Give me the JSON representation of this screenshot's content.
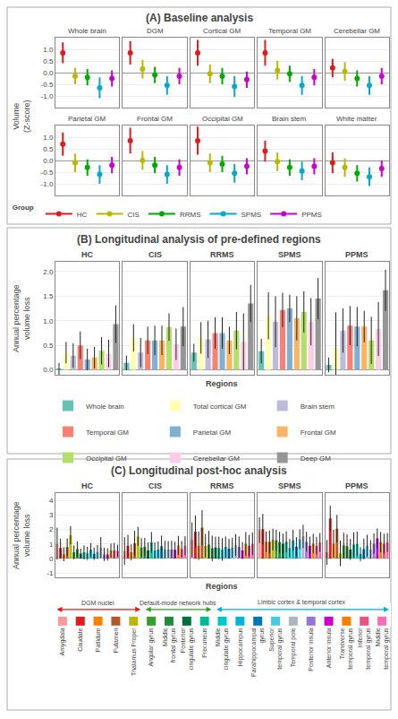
{
  "chart_data": [
    {
      "type": "point_range",
      "title": "(A) Baseline analysis",
      "y_label": "Volume\n(Z-score)",
      "categories": [
        "Whole brain",
        "DGM",
        "Cortical GM",
        "Temporal GM",
        "Cerebellar GM",
        "Parietal GM",
        "Frontal GM",
        "Occipital GM",
        "Brain stem",
        "White matter"
      ],
      "series": [
        {
          "name": "HC",
          "color": "#e31a1c",
          "values": [
            0.85,
            0.85,
            0.85,
            0.85,
            0.2,
            0.7,
            0.85,
            0.85,
            0.4,
            -0.1
          ],
          "lower": [
            0.4,
            0.35,
            0.3,
            0.3,
            -0.2,
            0.2,
            0.3,
            0.25,
            -0.05,
            -0.55
          ],
          "upper": [
            1.3,
            1.35,
            1.4,
            1.4,
            0.6,
            1.2,
            1.4,
            1.45,
            0.85,
            0.35
          ]
        },
        {
          "name": "CIS",
          "color": "#b8b800",
          "values": [
            -0.15,
            0.15,
            -0.05,
            0.1,
            0.05,
            -0.1,
            0.0,
            -0.1,
            -0.05,
            -0.3
          ],
          "lower": [
            -0.5,
            -0.25,
            -0.45,
            -0.3,
            -0.35,
            -0.5,
            -0.4,
            -0.5,
            -0.45,
            -0.7
          ],
          "upper": [
            0.2,
            0.55,
            0.35,
            0.5,
            0.45,
            0.3,
            0.4,
            0.3,
            0.35,
            0.1
          ]
        },
        {
          "name": "RRMS",
          "color": "#00aa00",
          "values": [
            -0.2,
            -0.1,
            -0.15,
            -0.05,
            -0.25,
            -0.3,
            -0.2,
            -0.15,
            -0.3,
            -0.55
          ],
          "lower": [
            -0.55,
            -0.45,
            -0.5,
            -0.4,
            -0.6,
            -0.65,
            -0.55,
            -0.5,
            -0.65,
            -0.9
          ],
          "upper": [
            0.15,
            0.25,
            0.2,
            0.3,
            0.1,
            0.05,
            0.15,
            0.2,
            0.05,
            -0.2
          ]
        },
        {
          "name": "SPMS",
          "color": "#00aacc",
          "values": [
            -0.65,
            -0.55,
            -0.6,
            -0.55,
            -0.55,
            -0.6,
            -0.6,
            -0.55,
            -0.45,
            -0.7
          ],
          "lower": [
            -1.1,
            -0.95,
            -1.05,
            -0.95,
            -0.95,
            -1.0,
            -1.0,
            -0.95,
            -0.85,
            -1.1
          ],
          "upper": [
            -0.2,
            -0.15,
            -0.15,
            -0.15,
            -0.15,
            -0.2,
            -0.2,
            -0.15,
            -0.05,
            -0.3
          ]
        },
        {
          "name": "PPMS",
          "color": "#cc00cc",
          "values": [
            -0.25,
            -0.15,
            -0.3,
            -0.2,
            -0.15,
            -0.2,
            -0.3,
            -0.25,
            -0.25,
            -0.35
          ],
          "lower": [
            -0.6,
            -0.5,
            -0.65,
            -0.55,
            -0.5,
            -0.55,
            -0.65,
            -0.6,
            -0.6,
            -0.7
          ],
          "upper": [
            0.1,
            0.2,
            0.05,
            0.15,
            0.2,
            0.15,
            0.05,
            0.1,
            0.1,
            0.0
          ]
        }
      ],
      "ylim": [
        -1.5,
        1.5
      ],
      "yticks": [
        {
          "value": -1.0,
          "label": "-1.0"
        },
        -0.5,
        {
          "value": 0.0,
          "label": "0.0"
        },
        0.5,
        {
          "value": 1.0,
          "label": "1.0"
        }
      ],
      "grid": true,
      "legend": "bottom",
      "legend_title": "Group"
    },
    {
      "type": "bar",
      "title": "(B) Longitudinal analysis of pre-defined regions",
      "y_label": "Annual percentage\nvolume loss",
      "x_label": "Regions",
      "categories": [
        "Whole brain",
        "Total cortical GM",
        "Brain stem",
        "Temporal GM",
        "Parietal GM",
        "Frontal GM",
        "Occipital GM",
        "Cerebellar GM",
        "Deep GM"
      ],
      "colors": [
        "#66c2b5",
        "#ffffb3",
        "#bebada",
        "#fb8072",
        "#80b1d3",
        "#fdb462",
        "#b3de69",
        "#fccde5",
        "#969696"
      ],
      "panels": [
        {
          "title": "HC",
          "values": [
            0.02,
            0.35,
            0.29,
            0.5,
            0.21,
            0.25,
            0.39,
            0.33,
            0.93
          ],
          "errors": [
            0.12,
            0.22,
            0.25,
            0.28,
            0.22,
            0.22,
            0.28,
            0.28,
            0.38
          ]
        },
        {
          "title": "CIS",
          "values": [
            0.14,
            0.65,
            0.35,
            0.6,
            0.6,
            0.6,
            0.87,
            0.52,
            0.88
          ],
          "errors": [
            0.15,
            0.28,
            0.3,
            0.28,
            0.3,
            0.3,
            0.28,
            0.32,
            0.4
          ]
        },
        {
          "title": "RRMS",
          "values": [
            0.35,
            0.65,
            0.62,
            0.75,
            0.75,
            0.6,
            0.8,
            0.57,
            1.35
          ],
          "errors": [
            0.18,
            0.32,
            0.38,
            0.32,
            0.32,
            0.28,
            0.38,
            0.58,
            0.38
          ]
        },
        {
          "title": "SPMS",
          "values": [
            0.38,
            1.1,
            0.98,
            1.22,
            1.25,
            1.05,
            1.18,
            0.98,
            1.45
          ],
          "errors": [
            0.25,
            0.48,
            0.52,
            0.35,
            0.28,
            0.45,
            0.42,
            0.48,
            0.42
          ]
        },
        {
          "title": "PPMS",
          "values": [
            0.1,
            0.45,
            0.8,
            0.9,
            0.88,
            0.88,
            0.6,
            0.83,
            1.62
          ],
          "errors": [
            0.15,
            0.72,
            0.45,
            0.4,
            0.4,
            0.32,
            0.48,
            0.55,
            0.42
          ]
        }
      ],
      "ylim": [
        -0.1,
        2.2
      ],
      "yticks": [
        {
          "value": 0.0,
          "label": "0.0"
        },
        0.5,
        {
          "value": 1.0,
          "label": "1.0"
        },
        1.5,
        {
          "value": 2.0,
          "label": "2.0"
        }
      ],
      "grid": true,
      "legend": "bottom"
    },
    {
      "type": "bar",
      "title": "(C) Longitudinal post-hoc analysis",
      "y_label": "Annual percentage\nvolume loss",
      "x_label": "Regions",
      "categories": [
        "Amygdala",
        "Caudate",
        "Pallidum",
        "Putamen",
        "Thalamus Proper",
        "Angular gyrus",
        "Middle\nfrontal gyrus",
        "Posterior\ncingulate gyrus",
        "Precuneus",
        "Middle\ncingulate gyrus",
        "Hippocampus",
        "Parahippocampal\ngyrus",
        "Superior\ntemporal gyrus",
        "Temporal pole",
        "Posterior insula",
        "Anterior insula",
        "Transverse\ntemporal gyrus",
        "Inferior\ntemporal gyrus",
        "Middle\ntemporal gyrus"
      ],
      "colors": [
        "#fb9a99",
        "#e31a1c",
        "#ff7f00",
        "#b15928",
        "#b8b800",
        "#33a02c",
        "#1f8c3c",
        "#00703c",
        "#00b894",
        "#00c8c8",
        "#00b4d8",
        "#0077b6",
        "#48cae4",
        "#adb5bd",
        "#9775d6",
        "#cc00cc",
        "#f77f00",
        "#e75480",
        "#ff69b4"
      ],
      "panels": [
        {
          "title": "HC",
          "values": [
            1.02,
            0.72,
            0.29,
            0.78,
            1.6,
            0.42,
            0.65,
            0.33,
            0.42,
            0.35,
            0.59,
            0.32,
            0.45,
            0.75,
            0.28,
            0.28,
            0.55,
            0.55,
            0.52
          ],
          "errors": [
            1.1,
            0.65,
            0.48,
            0.6,
            0.62,
            0.48,
            0.52,
            0.35,
            0.48,
            0.45,
            0.45,
            0.42,
            0.48,
            0.72,
            0.45,
            0.42,
            0.48,
            0.52,
            0.42
          ]
        },
        {
          "title": "CIS",
          "values": [
            0.52,
            0.88,
            0.42,
            1.05,
            1.52,
            0.75,
            0.8,
            0.55,
            1.1,
            0.55,
            0.62,
            0.85,
            0.62,
            0.62,
            0.62,
            0.6,
            0.9,
            0.65,
            0.88
          ],
          "errors": [
            0.95,
            0.75,
            0.55,
            0.85,
            0.65,
            0.65,
            0.62,
            0.55,
            0.72,
            0.55,
            0.55,
            0.72,
            0.6,
            0.58,
            0.6,
            0.55,
            0.65,
            0.55,
            0.65
          ]
        },
        {
          "title": "RRMS",
          "values": [
            1.28,
            1.85,
            0.88,
            2.12,
            0.88,
            0.95,
            0.7,
            0.75,
            0.72,
            0.62,
            0.8,
            0.68,
            0.75,
            0.92,
            0.8,
            0.55,
            1.0,
            0.88,
            1.0
          ],
          "errors": [
            1.2,
            1.1,
            0.98,
            1.2,
            0.8,
            0.95,
            0.88,
            0.75,
            0.78,
            0.78,
            0.72,
            0.68,
            0.68,
            0.75,
            0.72,
            0.58,
            0.82,
            0.72,
            0.78
          ]
        },
        {
          "title": "SPMS",
          "values": [
            1.95,
            2.02,
            1.15,
            1.15,
            1.3,
            1.25,
            1.12,
            1.02,
            1.15,
            0.72,
            1.25,
            0.82,
            1.32,
            1.52,
            1.15,
            0.88,
            1.02,
            0.88,
            1.1
          ],
          "errors": [
            0.88,
            1.05,
            0.72,
            0.78,
            0.75,
            0.72,
            0.72,
            0.68,
            0.72,
            0.62,
            0.72,
            0.65,
            0.68,
            0.8,
            0.68,
            0.62,
            0.68,
            0.6,
            0.65
          ]
        },
        {
          "title": "PPMS",
          "values": [
            0.42,
            2.75,
            1.02,
            2.05,
            0.35,
            0.9,
            0.85,
            0.62,
            0.95,
            1.0,
            0.3,
            0.65,
            0.88,
            0.62,
            1.02,
            1.38,
            1.12,
            1.02,
            1.1
          ],
          "errors": [
            0.85,
            0.88,
            0.95,
            0.95,
            0.88,
            0.88,
            0.82,
            0.72,
            0.85,
            0.85,
            0.48,
            0.72,
            0.75,
            0.65,
            0.7,
            0.68,
            0.7,
            0.68,
            0.65
          ]
        }
      ],
      "ylim": [
        -1.3,
        4.5
      ],
      "yticks": [
        -1,
        0,
        1,
        2,
        3,
        4
      ],
      "grid": true,
      "legend": "bottom",
      "region_groups": [
        {
          "label": "DGM nuclei",
          "color": "#e31a1c",
          "first": "Amygdala",
          "last": "Thalamus Proper"
        },
        {
          "label": "Default-mode network hubs",
          "color": "#33a02c",
          "first": "Angular gyrus",
          "last": "Precuneus"
        },
        {
          "label": "Limbic cortex & temporal cortex",
          "color": "#00b4d8",
          "first": "Middle\ncingulate gyrus",
          "last": "Middle\ntemporal gyrus"
        }
      ]
    }
  ]
}
